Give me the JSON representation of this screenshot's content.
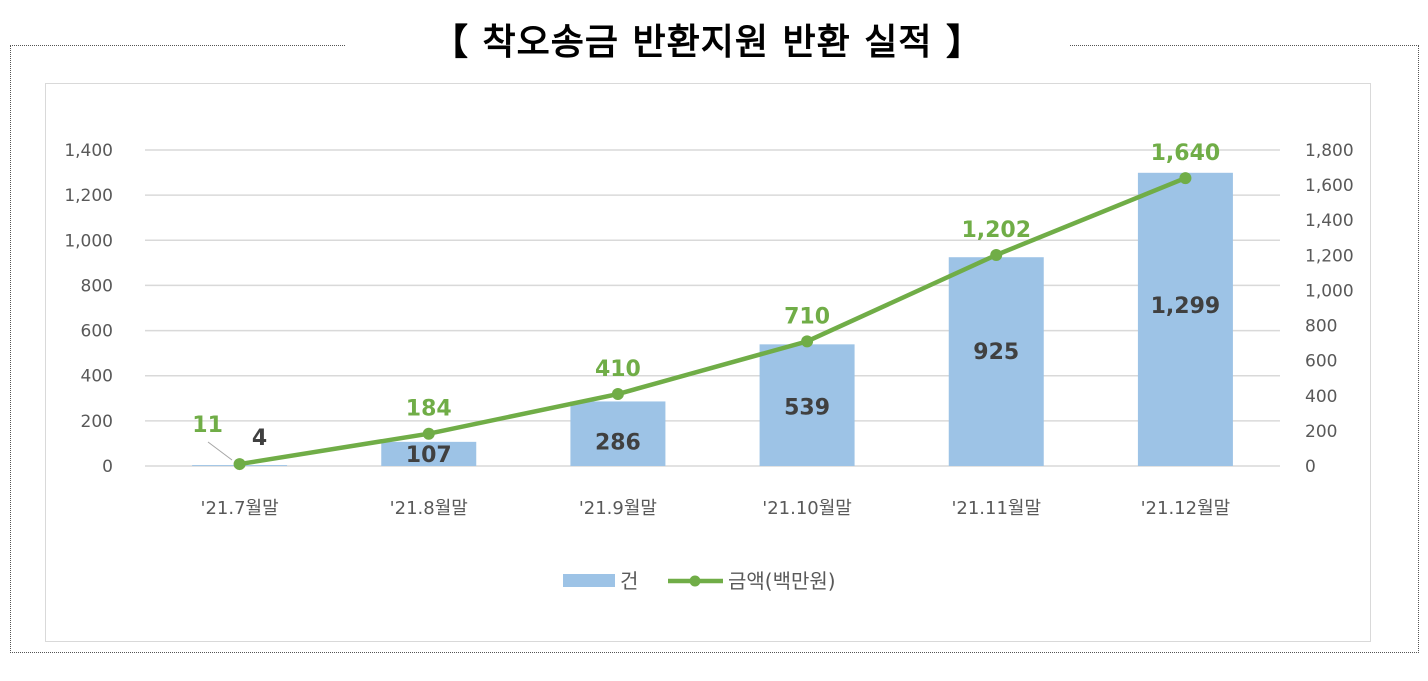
{
  "title": "【 착오송금 반환지원 반환 실적 】",
  "chart_data": {
    "type": "bar+line",
    "title": "【 착오송금 반환지원 반환 실적 】",
    "categories": [
      "'21.7월말",
      "'21.8월말",
      "'21.9월말",
      "'21.10월말",
      "'21.11월말",
      "'21.12월말"
    ],
    "series": [
      {
        "name": "건",
        "type": "bar",
        "axis": "left",
        "values": [
          4,
          107,
          286,
          539,
          925,
          1299
        ],
        "labels": [
          "4",
          "107",
          "286",
          "539",
          "925",
          "1,299"
        ],
        "color": "#9dc3e6"
      },
      {
        "name": "금액(백만원)",
        "type": "line",
        "axis": "right",
        "values": [
          11,
          184,
          410,
          710,
          1202,
          1640
        ],
        "labels": [
          "11",
          "184",
          "410",
          "710",
          "1,202",
          "1,640"
        ],
        "color": "#70ad47"
      }
    ],
    "left_axis": {
      "ylim": [
        0,
        1400
      ],
      "ticks": [
        "0",
        "200",
        "400",
        "600",
        "800",
        "1,000",
        "1,200",
        "1,400"
      ]
    },
    "right_axis": {
      "ylim": [
        0,
        1800
      ],
      "ticks": [
        "0",
        "200",
        "400",
        "600",
        "800",
        "1,000",
        "1,200",
        "1,400",
        "1,600",
        "1,800"
      ]
    },
    "grid": true,
    "legend": "bottom"
  }
}
